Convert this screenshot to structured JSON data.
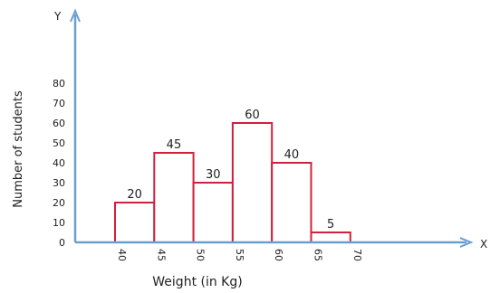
{
  "chart_data": {
    "type": "bar",
    "categories": [
      "40-45",
      "45-50",
      "50-55",
      "55-60",
      "60-65",
      "65-70"
    ],
    "bins": [
      [
        40,
        45
      ],
      [
        45,
        50
      ],
      [
        50,
        55
      ],
      [
        55,
        60
      ],
      [
        60,
        65
      ],
      [
        65,
        70
      ]
    ],
    "values": [
      20,
      45,
      30,
      60,
      40,
      5
    ],
    "data_labels": [
      "20",
      "45",
      "30",
      "60",
      "40",
      "5"
    ],
    "x_ticks": [
      "40",
      "45",
      "50",
      "55",
      "60",
      "65",
      "70"
    ],
    "y_ticks": [
      "0",
      "10",
      "20",
      "30",
      "40",
      "50",
      "60",
      "70",
      "80"
    ],
    "xlabel": "Weight (in Kg)",
    "ylabel": "Number of students",
    "x_axis_letter": "X",
    "y_axis_letter": "Y",
    "ylim": [
      0,
      80
    ],
    "xlim": [
      40,
      70
    ],
    "grid": false,
    "colors": {
      "bar_edge": "#d0213a",
      "axis": "#6a9fd0",
      "bar_fill": "#ffffff"
    }
  }
}
